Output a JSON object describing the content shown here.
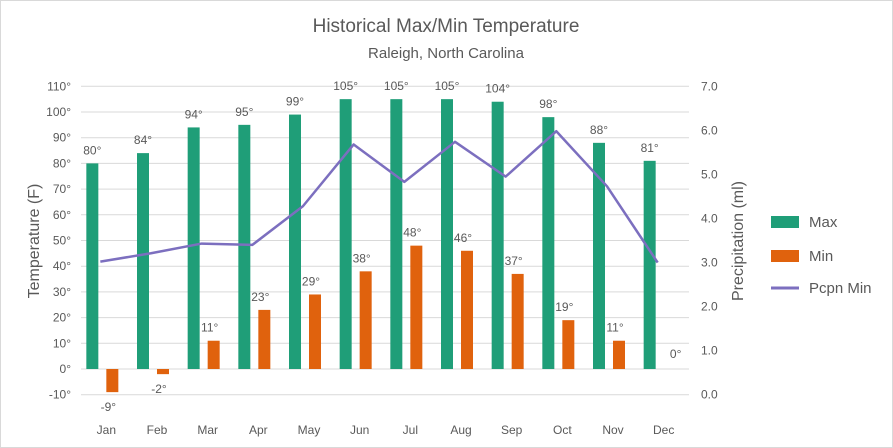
{
  "chart_data": {
    "type": "bar",
    "title": "Historical Max/Min Temperature",
    "subtitle": "Raleigh, North Carolina",
    "ylabel": "Temperature (F)",
    "y2label": "Precipitation (ml)",
    "categories": [
      "Jan",
      "Feb",
      "Mar",
      "Apr",
      "May",
      "Jun",
      "Jul",
      "Aug",
      "Sep",
      "Oct",
      "Nov",
      "Dec"
    ],
    "ylim": [
      -10,
      110
    ],
    "y2lim": [
      0,
      7
    ],
    "yticks": [
      "-10°",
      "0°",
      "10°",
      "20°",
      "30°",
      "40°",
      "50°",
      "60°",
      "70°",
      "80°",
      "90°",
      "100°",
      "110°"
    ],
    "y2ticks": [
      "0.0",
      "1.0",
      "2.0",
      "3.0",
      "4.0",
      "5.0",
      "6.0",
      "7.0"
    ],
    "legend_position": "right",
    "series": [
      {
        "name": "Max",
        "kind": "bar",
        "color": "#1f9e78",
        "values": [
          80,
          84,
          94,
          95,
          99,
          105,
          105,
          105,
          104,
          98,
          88,
          81
        ],
        "labels": [
          "80°",
          "84°",
          "94°",
          "95°",
          "99°",
          "105°",
          "105°",
          "105°",
          "104°",
          "98°",
          "88°",
          "81°"
        ]
      },
      {
        "name": "Min",
        "kind": "bar",
        "color": "#e0620d",
        "values": [
          -9,
          -2,
          11,
          23,
          29,
          38,
          48,
          46,
          37,
          19,
          11,
          0
        ],
        "labels": [
          "-9°",
          "-2°",
          "11°",
          "23°",
          "29°",
          "38°",
          "48°",
          "46°",
          "37°",
          "19°",
          "11°",
          "0°"
        ]
      },
      {
        "name": "Pcpn Min",
        "kind": "line",
        "axis": "secondary",
        "color": "#7c6fbf",
        "values": [
          3.02,
          3.21,
          3.43,
          3.4,
          4.28,
          5.68,
          4.83,
          5.74,
          4.95,
          5.98,
          4.73,
          3.0
        ]
      }
    ]
  }
}
